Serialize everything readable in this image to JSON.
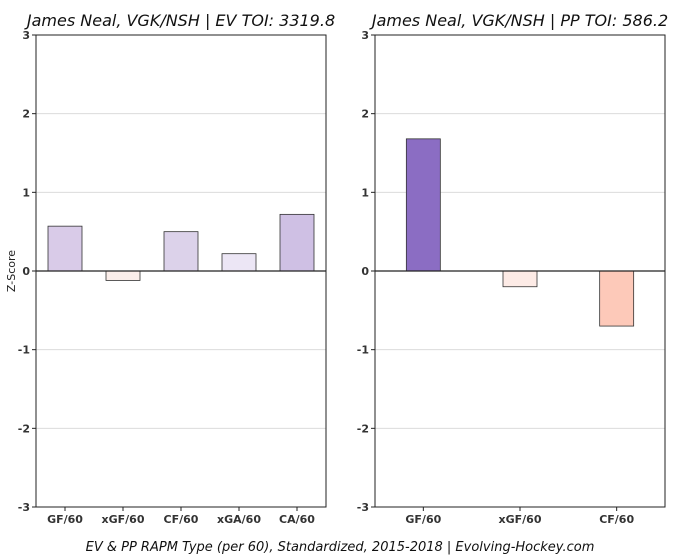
{
  "caption": "EV & PP RAPM Type (per 60), Standardized, 2015-2018   |   Evolving-Hockey.com",
  "ylabel": "Z-Score",
  "chart_data": [
    {
      "type": "bar",
      "title": "James Neal, VGK/NSH  |  EV TOI: 3319.8",
      "categories": [
        "GF/60",
        "xGF/60",
        "CF/60",
        "xGA/60",
        "CA/60"
      ],
      "values": [
        0.57,
        -0.12,
        0.5,
        0.22,
        0.72
      ],
      "colors": [
        "#d9cbe8",
        "#fbeeea",
        "#dcd2ea",
        "#ece6f5",
        "#cfc0e4"
      ],
      "ylim": [
        -3,
        3
      ],
      "yticks": [
        -3,
        -2,
        -1,
        0,
        1,
        2,
        3
      ],
      "grid": true
    },
    {
      "type": "bar",
      "title": "James Neal, VGK/NSH  |  PP TOI: 586.2",
      "categories": [
        "GF/60",
        "xGF/60",
        "CF/60"
      ],
      "values": [
        1.68,
        -0.2,
        -0.7
      ],
      "colors": [
        "#8b6dc3",
        "#fdebe6",
        "#fdc9b9"
      ],
      "ylim": [
        -3,
        3
      ],
      "yticks": [
        -3,
        -2,
        -1,
        0,
        1,
        2,
        3
      ],
      "grid": true
    }
  ]
}
